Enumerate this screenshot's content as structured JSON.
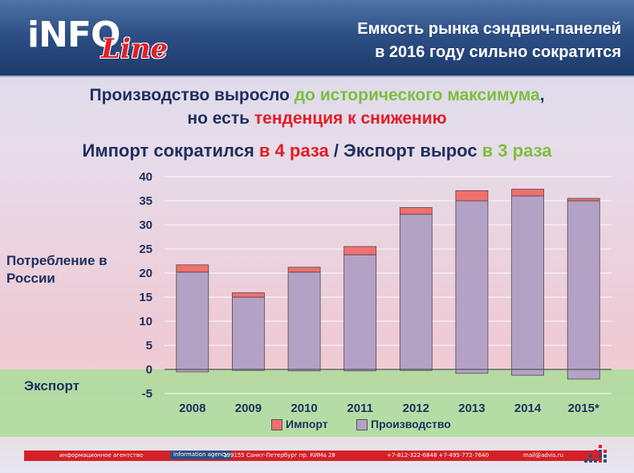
{
  "header": {
    "logo_main": "iNFO",
    "logo_script": "Line",
    "title_line1": "Емкость рынка сэндвич-панелей",
    "title_line2": "в 2016 году сильно сократится"
  },
  "headlines": {
    "line1_a": "Производство выросло ",
    "line1_b": "до исторического максимума",
    "line1_c": ",",
    "line2_a": "но есть ",
    "line2_b": "тенденция к снижению",
    "line3_a": "Импорт сократился ",
    "line3_b": "в 4 раза",
    "line3_c": " / Экспорт вырос ",
    "line3_d": "в 3 раза"
  },
  "side_labels": {
    "consumption": "Потребление в России",
    "export": "Экспорт"
  },
  "colors": {
    "production": "#b4a2c6",
    "import": "#f26f6f",
    "export_band": "#a6dd96",
    "title_blue": "#1f2f5e",
    "accent_green": "#7cbf3c",
    "accent_red": "#e41b23"
  },
  "chart_data": {
    "type": "bar",
    "stacked": true,
    "categories": [
      "2008",
      "2009",
      "2010",
      "2011",
      "2012",
      "2013",
      "2014",
      "2015*"
    ],
    "series": [
      {
        "name": "Производство",
        "values": [
          20.2,
          15.0,
          20.2,
          23.8,
          32.2,
          35.0,
          36.0,
          35.0
        ]
      },
      {
        "name": "Импорт",
        "values": [
          1.5,
          0.9,
          1.0,
          1.7,
          1.4,
          2.1,
          1.4,
          0.5
        ]
      },
      {
        "name": "Экспорт",
        "values": [
          -0.5,
          -0.2,
          -0.3,
          -0.3,
          -0.2,
          -0.8,
          -1.2,
          -2.0
        ]
      }
    ],
    "legend": [
      "Импорт",
      "Производство"
    ],
    "legend_position": "bottom",
    "ylim": [
      -5,
      40
    ],
    "yticks": [
      -5,
      0,
      5,
      10,
      15,
      20,
      25,
      30,
      35,
      40
    ],
    "grid": true
  },
  "footer": {
    "agency_ru": "информационное агентство",
    "agency_en": "information agency",
    "address": "199155 Санкт-Петербург пр. КИМа 28",
    "phones": "+7-812-322-6848  +7-495-772-7640",
    "email": "mail@advis.ru"
  }
}
